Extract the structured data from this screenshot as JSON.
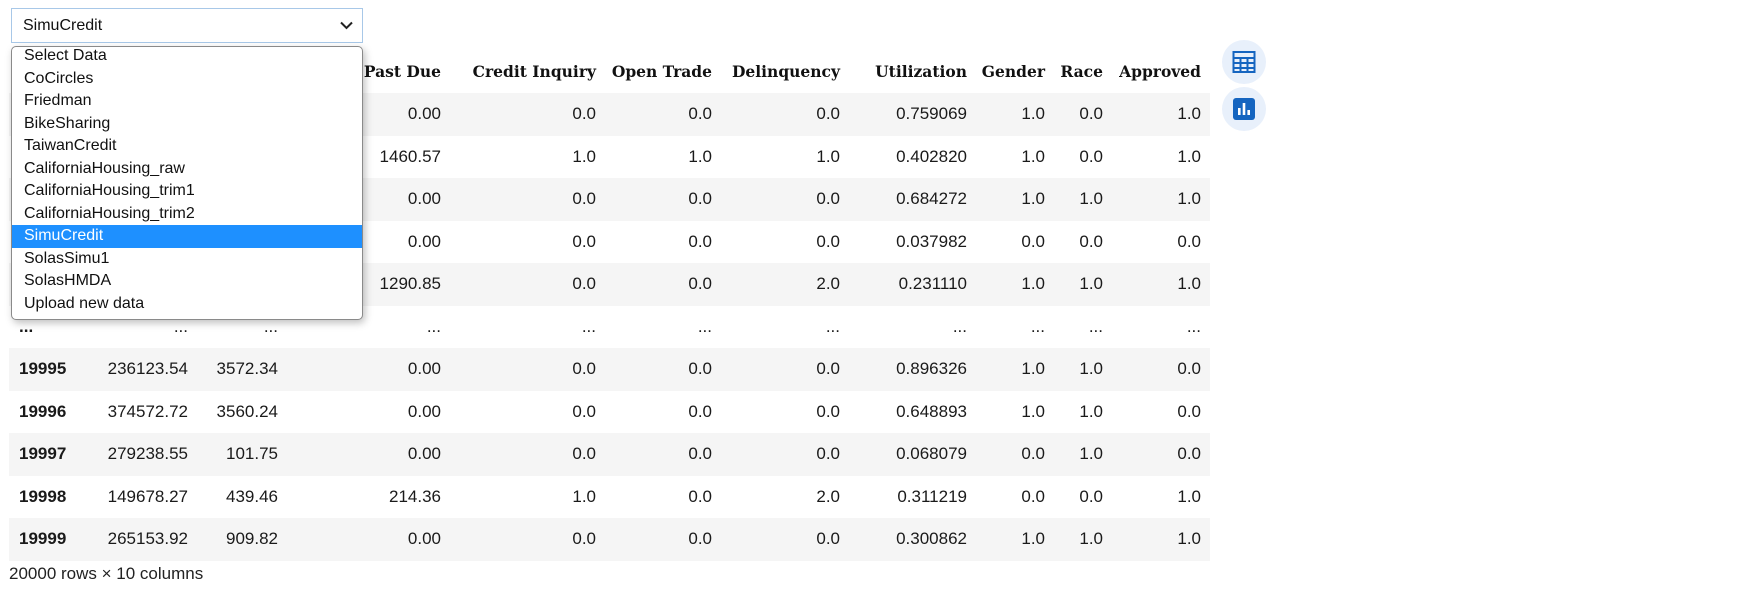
{
  "selector": {
    "value": "SimuCredit",
    "options": [
      "Select Data",
      "CoCircles",
      "Friedman",
      "BikeSharing",
      "TaiwanCredit",
      "CaliforniaHousing_raw",
      "CaliforniaHousing_trim1",
      "CaliforniaHousing_trim2",
      "SimuCredit",
      "SolasSimu1",
      "SolasHMDA",
      "Upload new data"
    ],
    "selected_index": 8
  },
  "table": {
    "columns": [
      "",
      "",
      "",
      "Past Due",
      "Credit Inquiry",
      "Open Trade",
      "Delinquency",
      "Utilization",
      "Gender",
      "Race",
      "Approved"
    ],
    "rows": [
      [
        "",
        "",
        "",
        "0.00",
        "0.0",
        "0.0",
        "0.0",
        "0.759069",
        "1.0",
        "0.0",
        "1.0"
      ],
      [
        "",
        "",
        "",
        "1460.57",
        "1.0",
        "1.0",
        "1.0",
        "0.402820",
        "1.0",
        "0.0",
        "1.0"
      ],
      [
        "",
        "",
        "",
        "0.00",
        "0.0",
        "0.0",
        "0.0",
        "0.684272",
        "1.0",
        "1.0",
        "1.0"
      ],
      [
        "",
        "",
        "",
        "0.00",
        "0.0",
        "0.0",
        "0.0",
        "0.037982",
        "0.0",
        "0.0",
        "0.0"
      ],
      [
        "",
        "",
        "",
        "1290.85",
        "0.0",
        "0.0",
        "2.0",
        "0.231110",
        "1.0",
        "1.0",
        "1.0"
      ],
      [
        "...",
        "...",
        "...",
        "...",
        "...",
        "...",
        "...",
        "...",
        "...",
        "...",
        "..."
      ],
      [
        "19995",
        "236123.54",
        "3572.34",
        "0.00",
        "0.0",
        "0.0",
        "0.0",
        "0.896326",
        "1.0",
        "1.0",
        "0.0"
      ],
      [
        "19996",
        "374572.72",
        "3560.24",
        "0.00",
        "0.0",
        "0.0",
        "0.0",
        "0.648893",
        "1.0",
        "1.0",
        "0.0"
      ],
      [
        "19997",
        "279238.55",
        "101.75",
        "0.00",
        "0.0",
        "0.0",
        "0.0",
        "0.068079",
        "0.0",
        "1.0",
        "0.0"
      ],
      [
        "19998",
        "149678.27",
        "439.46",
        "214.36",
        "1.0",
        "0.0",
        "2.0",
        "0.311219",
        "0.0",
        "0.0",
        "1.0"
      ],
      [
        "19999",
        "265153.92",
        "909.82",
        "0.00",
        "0.0",
        "0.0",
        "0.0",
        "0.300862",
        "1.0",
        "1.0",
        "1.0"
      ]
    ]
  },
  "footer": "20000 rows × 10 columns",
  "toggles": [
    {
      "icon": "table-icon"
    },
    {
      "icon": "chart-icon"
    }
  ],
  "colors": {
    "accent": "#1e90ff",
    "icon": "#1565c0",
    "toggle_bg": "#e8f0fb"
  }
}
